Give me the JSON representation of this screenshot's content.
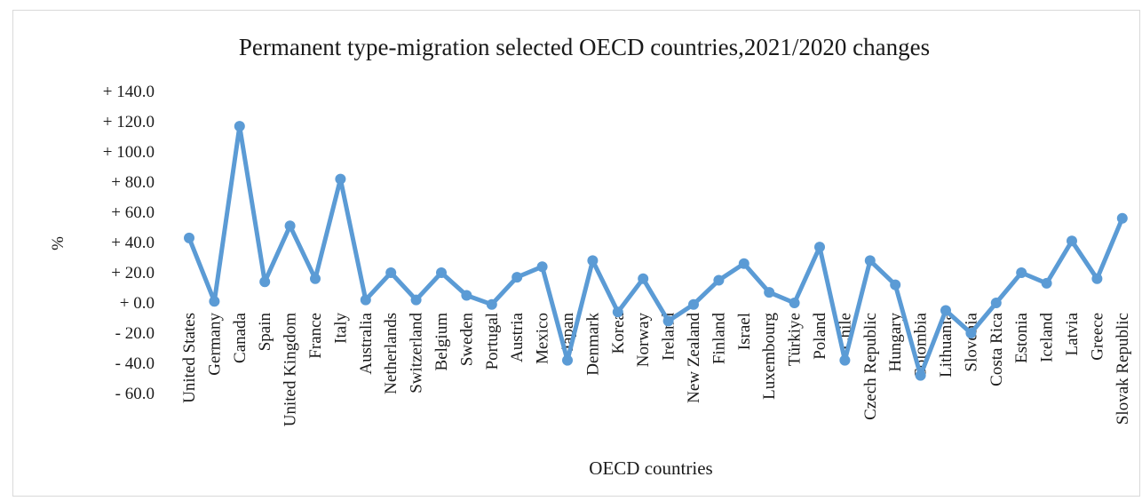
{
  "chart_data": {
    "type": "line",
    "title": "Permanent type-migration selected OECD countries,2021/2020  changes",
    "xlabel": "OECD countries",
    "ylabel": "%",
    "ylim": [
      -60,
      140
    ],
    "yticks": [
      140,
      120,
      100,
      80,
      60,
      40,
      20,
      0,
      -20,
      -40,
      -60
    ],
    "ytick_labels": [
      "+ 140.0",
      "+ 120.0",
      "+ 100.0",
      "+ 80.0",
      "+ 60.0",
      "+ 40.0",
      "+ 20.0",
      "+ 0.0",
      "- 20.0",
      "- 40.0",
      "- 60.0"
    ],
    "grid": false,
    "legend": "none",
    "color": "#5b9bd5",
    "categories": [
      "United States",
      "Germany",
      "Canada",
      "Spain",
      "United Kingdom",
      "France",
      "Italy",
      "Australia",
      "Netherlands",
      "Switzerland",
      "Belgium",
      "Sweden",
      "Portugal",
      "Austria",
      "Mexico",
      "Japan",
      "Denmark",
      "Korea",
      "Norway",
      "Ireland",
      "New Zealand",
      "Finland",
      "Israel",
      "Luxembourg",
      "Türkiye",
      "Poland",
      "Chile",
      "Czech Republic",
      "Hungary",
      "Colombia",
      "Lithuania",
      "Slovenia",
      "Costa Rica",
      "Estonia",
      "Iceland",
      "Latvia",
      "Greece",
      "Slovak Republic"
    ],
    "values": [
      43,
      1,
      117,
      14,
      51,
      16,
      82,
      2,
      20,
      2,
      20,
      5,
      -1,
      17,
      24,
      -38,
      28,
      -6,
      16,
      -12,
      -1,
      15,
      26,
      7,
      0,
      37,
      -38,
      28,
      12,
      -48,
      -5,
      -20,
      0,
      20,
      13,
      41,
      16,
      56
    ]
  }
}
